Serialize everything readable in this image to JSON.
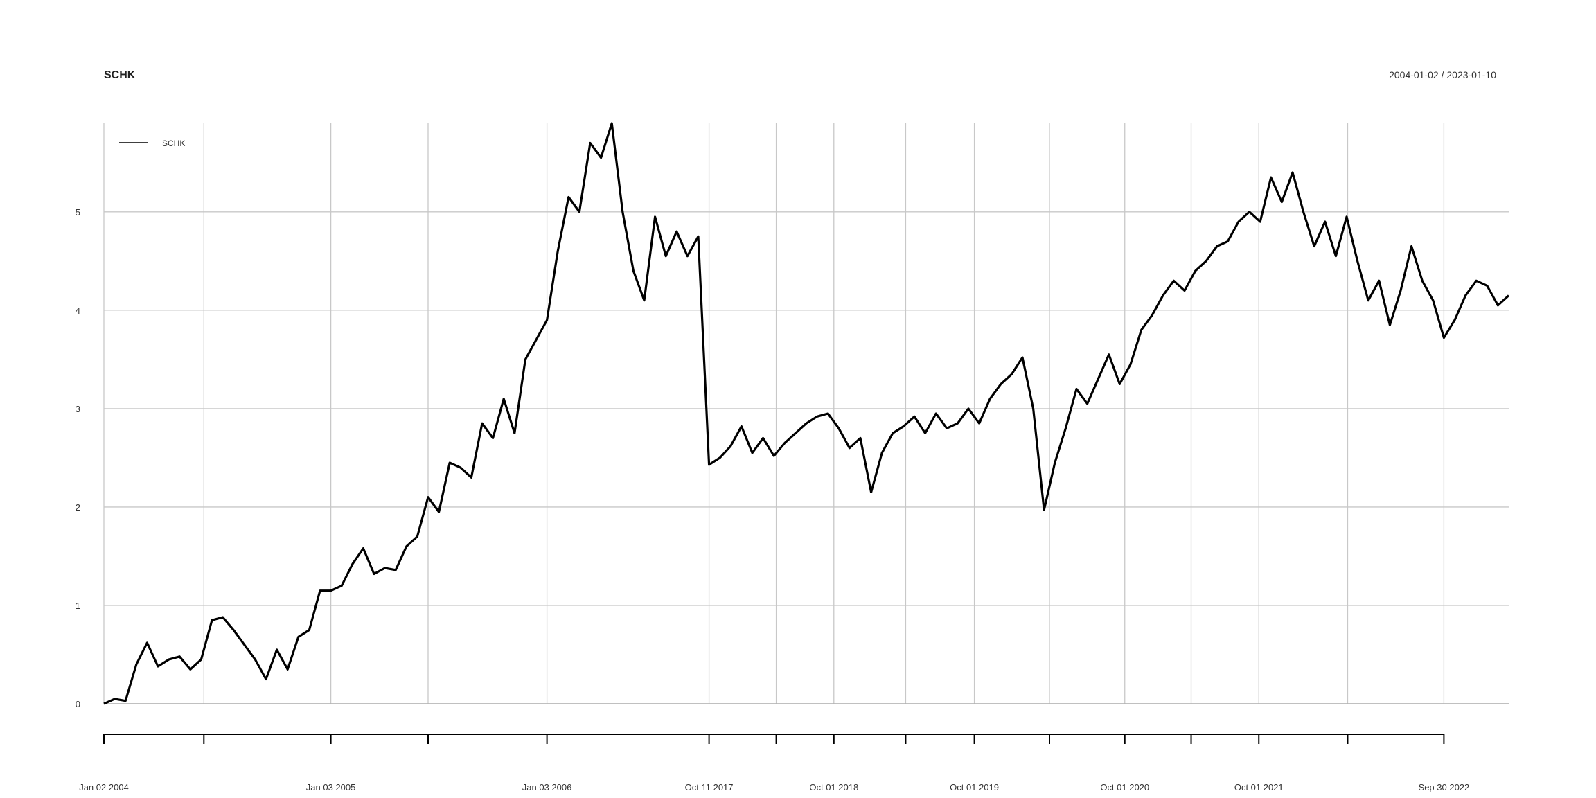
{
  "chart_data": {
    "type": "line",
    "title": "SCHK",
    "date_range": "2004-01-02 / 2023-01-10",
    "xlabel": "",
    "ylabel": "",
    "ylim": [
      0,
      5.9
    ],
    "y_ticks": [
      0,
      1,
      2,
      3,
      4,
      5
    ],
    "grid": true,
    "legend_position": "top-left",
    "x_tick_labels": [
      {
        "date": "2004-01-02",
        "label": "Jan 02 2004"
      },
      {
        "date": "2005-01-03",
        "label": "Jan 03 2005"
      },
      {
        "date": "2006-01-03",
        "label": "Jan 03 2006"
      },
      {
        "date": "2017-10-11",
        "label": "Oct 11 2017"
      },
      {
        "date": "2018-10-01",
        "label": "Oct 01 2018"
      },
      {
        "date": "2019-10-01",
        "label": "Oct 01 2019"
      },
      {
        "date": "2020-10-01",
        "label": "Oct 01 2020"
      },
      {
        "date": "2021-10-01",
        "label": "Oct 01 2021"
      },
      {
        "date": "2022-09-30",
        "label": "Sep 30 2022"
      }
    ],
    "x_ticks": [
      "2004-01-02",
      "2004-07-01",
      "2005-01-03",
      "2005-07-01",
      "2006-01-03",
      "2017-10-11",
      "2018-04-02",
      "2018-10-01",
      "2019-04-01",
      "2019-10-01",
      "2020-04-01",
      "2020-10-01",
      "2021-04-01",
      "2021-10-01",
      "2022-04-01",
      "2022-09-30"
    ],
    "series": [
      {
        "name": "SCHK",
        "color": "#000000",
        "points": [
          [
            "2004-01-02",
            0.0
          ],
          [
            "2004-01-20",
            0.05
          ],
          [
            "2004-02-10",
            0.03
          ],
          [
            "2004-03-01",
            0.4
          ],
          [
            "2004-03-20",
            0.62
          ],
          [
            "2004-04-10",
            0.38
          ],
          [
            "2004-05-01",
            0.45
          ],
          [
            "2004-05-20",
            0.48
          ],
          [
            "2004-06-10",
            0.35
          ],
          [
            "2004-06-28",
            0.45
          ],
          [
            "2004-07-10",
            0.85
          ],
          [
            "2004-07-25",
            0.88
          ],
          [
            "2004-08-10",
            0.75
          ],
          [
            "2004-08-25",
            0.6
          ],
          [
            "2004-09-10",
            0.45
          ],
          [
            "2004-09-22",
            0.25
          ],
          [
            "2004-10-10",
            0.55
          ],
          [
            "2004-10-25",
            0.35
          ],
          [
            "2004-11-10",
            0.68
          ],
          [
            "2004-11-28",
            0.75
          ],
          [
            "2004-12-15",
            1.15
          ],
          [
            "2005-01-03",
            1.15
          ],
          [
            "2005-01-25",
            1.2
          ],
          [
            "2005-02-15",
            1.42
          ],
          [
            "2005-03-05",
            1.58
          ],
          [
            "2005-03-20",
            1.32
          ],
          [
            "2005-04-10",
            1.38
          ],
          [
            "2005-05-01",
            1.36
          ],
          [
            "2005-05-20",
            1.6
          ],
          [
            "2005-06-10",
            1.7
          ],
          [
            "2005-07-01",
            2.1
          ],
          [
            "2005-07-20",
            1.95
          ],
          [
            "2005-08-05",
            2.45
          ],
          [
            "2005-08-25",
            2.4
          ],
          [
            "2005-09-10",
            2.3
          ],
          [
            "2005-09-28",
            2.85
          ],
          [
            "2005-10-15",
            2.7
          ],
          [
            "2005-11-01",
            3.1
          ],
          [
            "2005-11-20",
            2.75
          ],
          [
            "2005-12-05",
            3.5
          ],
          [
            "2005-12-20",
            3.7
          ],
          [
            "2006-01-03",
            3.9
          ],
          [
            "2006-01-20",
            4.6
          ],
          [
            "2006-02-05",
            5.15
          ],
          [
            "2006-02-20",
            5.0
          ],
          [
            "2006-03-05",
            5.7
          ],
          [
            "2006-03-15",
            5.55
          ],
          [
            "2006-03-25",
            5.9
          ],
          [
            "2006-04-05",
            5.0
          ],
          [
            "2006-04-15",
            4.4
          ],
          [
            "2006-04-22",
            4.1
          ],
          [
            "2006-05-01",
            4.95
          ],
          [
            "2006-05-10",
            4.55
          ],
          [
            "2006-05-20",
            4.8
          ],
          [
            "2006-05-28",
            4.55
          ],
          [
            "2006-06-05",
            4.75
          ],
          [
            "2017-10-11",
            2.43
          ],
          [
            "2017-11-20",
            2.5
          ],
          [
            "2017-12-20",
            2.62
          ],
          [
            "2018-01-25",
            2.82
          ],
          [
            "2018-02-08",
            2.55
          ],
          [
            "2018-03-01",
            2.7
          ],
          [
            "2018-03-25",
            2.52
          ],
          [
            "2018-05-01",
            2.65
          ],
          [
            "2018-06-10",
            2.75
          ],
          [
            "2018-07-15",
            2.85
          ],
          [
            "2018-08-20",
            2.92
          ],
          [
            "2018-09-20",
            2.95
          ],
          [
            "2018-10-10",
            2.8
          ],
          [
            "2018-10-25",
            2.6
          ],
          [
            "2018-11-20",
            2.7
          ],
          [
            "2018-12-24",
            2.15
          ],
          [
            "2019-01-20",
            2.55
          ],
          [
            "2019-02-25",
            2.75
          ],
          [
            "2019-03-25",
            2.82
          ],
          [
            "2019-04-30",
            2.92
          ],
          [
            "2019-05-30",
            2.75
          ],
          [
            "2019-07-01",
            2.95
          ],
          [
            "2019-08-05",
            2.8
          ],
          [
            "2019-08-28",
            2.85
          ],
          [
            "2019-09-20",
            3.0
          ],
          [
            "2019-10-10",
            2.85
          ],
          [
            "2019-11-10",
            3.1
          ],
          [
            "2019-12-20",
            3.25
          ],
          [
            "2020-01-20",
            3.35
          ],
          [
            "2020-02-19",
            3.52
          ],
          [
            "2020-03-10",
            3.0
          ],
          [
            "2020-03-23",
            1.97
          ],
          [
            "2020-04-10",
            2.45
          ],
          [
            "2020-05-05",
            2.8
          ],
          [
            "2020-06-08",
            3.2
          ],
          [
            "2020-06-30",
            3.05
          ],
          [
            "2020-08-05",
            3.3
          ],
          [
            "2020-09-02",
            3.55
          ],
          [
            "2020-09-23",
            3.25
          ],
          [
            "2020-10-10",
            3.45
          ],
          [
            "2020-11-10",
            3.8
          ],
          [
            "2020-12-10",
            3.95
          ],
          [
            "2021-01-15",
            4.15
          ],
          [
            "2021-02-15",
            4.3
          ],
          [
            "2021-03-10",
            4.2
          ],
          [
            "2021-04-15",
            4.4
          ],
          [
            "2021-05-12",
            4.5
          ],
          [
            "2021-06-05",
            4.65
          ],
          [
            "2021-06-30",
            4.7
          ],
          [
            "2021-08-10",
            4.9
          ],
          [
            "2021-09-03",
            5.0
          ],
          [
            "2021-10-05",
            4.9
          ],
          [
            "2021-11-05",
            5.35
          ],
          [
            "2021-12-01",
            5.1
          ],
          [
            "2021-12-28",
            5.4
          ],
          [
            "2022-01-10",
            5.0
          ],
          [
            "2022-01-27",
            4.65
          ],
          [
            "2022-02-10",
            4.9
          ],
          [
            "2022-03-08",
            4.55
          ],
          [
            "2022-03-30",
            4.95
          ],
          [
            "2022-04-20",
            4.5
          ],
          [
            "2022-05-12",
            4.1
          ],
          [
            "2022-06-01",
            4.3
          ],
          [
            "2022-06-16",
            3.85
          ],
          [
            "2022-07-15",
            4.2
          ],
          [
            "2022-08-16",
            4.65
          ],
          [
            "2022-08-30",
            4.3
          ],
          [
            "2022-09-15",
            4.1
          ],
          [
            "2022-09-30",
            3.72
          ],
          [
            "2022-10-20",
            3.9
          ],
          [
            "2022-11-10",
            4.15
          ],
          [
            "2022-11-30",
            4.3
          ],
          [
            "2022-12-15",
            4.25
          ],
          [
            "2022-12-28",
            4.05
          ],
          [
            "2023-01-10",
            4.15
          ]
        ]
      }
    ]
  }
}
